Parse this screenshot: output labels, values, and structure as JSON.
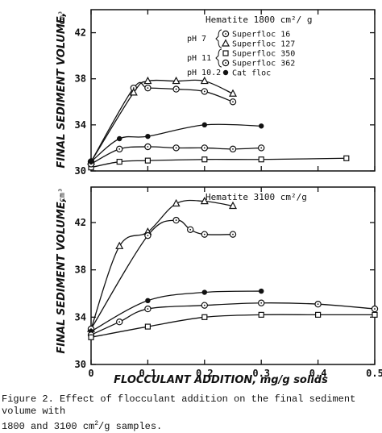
{
  "caption": {
    "line1": "Figure 2.  Effect of flocculant addition on the final sediment volume with",
    "line2a": "1800 and 3100 cm",
    "line2sup": "2",
    "line2b": "/g samples."
  },
  "shared_x": {
    "label": "FLOCCULANT ADDITION, mg/g solids",
    "ticks": [
      0,
      0.1,
      0.2,
      0.3,
      0.4,
      0.5
    ],
    "tick_labels": [
      "0",
      "0.1",
      "0.2",
      "0.3",
      "0.4",
      "0.5"
    ]
  },
  "chart_data": [
    {
      "type": "line",
      "title": "Hematite 1800 cm²/ g",
      "ylabel": "FINAL SEDIMENT VOLUME,",
      "yunit": "cm³",
      "xlim": [
        0,
        0.5
      ],
      "ylim": [
        30,
        44
      ],
      "y_ticks": [
        30,
        34,
        38,
        42
      ],
      "y_tick_labels": [
        "30",
        "34",
        "38",
        "42"
      ],
      "legend_groups": [
        {
          "prefix": "pH 7",
          "entries": [
            0,
            1
          ]
        },
        {
          "prefix": "pH 11",
          "entries": [
            2,
            3
          ]
        },
        {
          "prefix": "pH 10.2",
          "entries": [
            4
          ]
        }
      ],
      "series": [
        {
          "name": "Superfloc 16",
          "marker": "circle-dot",
          "x": [
            0,
            0.075,
            0.1,
            0.15,
            0.2,
            0.25
          ],
          "y": [
            30.8,
            37.2,
            37.2,
            37.1,
            36.9,
            36.0
          ]
        },
        {
          "name": "Superfloc 127",
          "marker": "triangle",
          "x": [
            0,
            0.075,
            0.1,
            0.15,
            0.2,
            0.25
          ],
          "y": [
            30.8,
            36.8,
            37.8,
            37.8,
            37.8,
            36.7
          ]
        },
        {
          "name": "Superfloc 350",
          "marker": "square",
          "x": [
            0,
            0.05,
            0.1,
            0.2,
            0.3,
            0.45
          ],
          "y": [
            30.3,
            30.8,
            30.9,
            31.0,
            31.0,
            31.1
          ]
        },
        {
          "name": "Superfloc 362",
          "marker": "circle-dot",
          "x": [
            0,
            0.05,
            0.1,
            0.15,
            0.2,
            0.25,
            0.3
          ],
          "y": [
            30.6,
            31.9,
            32.1,
            32.0,
            32.0,
            31.9,
            32.0
          ]
        },
        {
          "name": "Cat floc",
          "marker": "filled-circle",
          "x": [
            0,
            0.05,
            0.1,
            0.2,
            0.3
          ],
          "y": [
            30.8,
            32.8,
            33.0,
            34.0,
            33.9
          ]
        }
      ]
    },
    {
      "type": "line",
      "title": "Hematite 3100 cm²/g",
      "ylabel": "FINAL SEDIMENT VOLUME,",
      "yunit": "cm³",
      "xlim": [
        0,
        0.5
      ],
      "ylim": [
        30,
        45
      ],
      "y_ticks": [
        30,
        34,
        38,
        42
      ],
      "y_tick_labels": [
        "30",
        "34",
        "38",
        "42"
      ],
      "series": [
        {
          "name": "",
          "marker": "triangle",
          "x": [
            0,
            0.05,
            0.1,
            0.15,
            0.2,
            0.25
          ],
          "y": [
            33.0,
            40.0,
            41.2,
            43.6,
            43.8,
            43.4
          ]
        },
        {
          "name": "",
          "marker": "circle-dot",
          "x": [
            0,
            0.1,
            0.15,
            0.175,
            0.2,
            0.25
          ],
          "y": [
            33.0,
            40.9,
            42.2,
            41.4,
            41.0,
            41.0
          ]
        },
        {
          "name": "",
          "marker": "filled-circle",
          "x": [
            0,
            0.1,
            0.2,
            0.3
          ],
          "y": [
            32.8,
            35.4,
            36.1,
            36.2
          ]
        },
        {
          "name": "",
          "marker": "circle-dot",
          "x": [
            0,
            0.05,
            0.1,
            0.2,
            0.3,
            0.4,
            0.5
          ],
          "y": [
            32.5,
            33.6,
            34.7,
            35.0,
            35.2,
            35.1,
            34.7
          ]
        },
        {
          "name": "",
          "marker": "square",
          "x": [
            0,
            0.1,
            0.2,
            0.3,
            0.4,
            0.5
          ],
          "y": [
            32.3,
            33.2,
            34.0,
            34.2,
            34.2,
            34.2
          ]
        }
      ]
    }
  ]
}
